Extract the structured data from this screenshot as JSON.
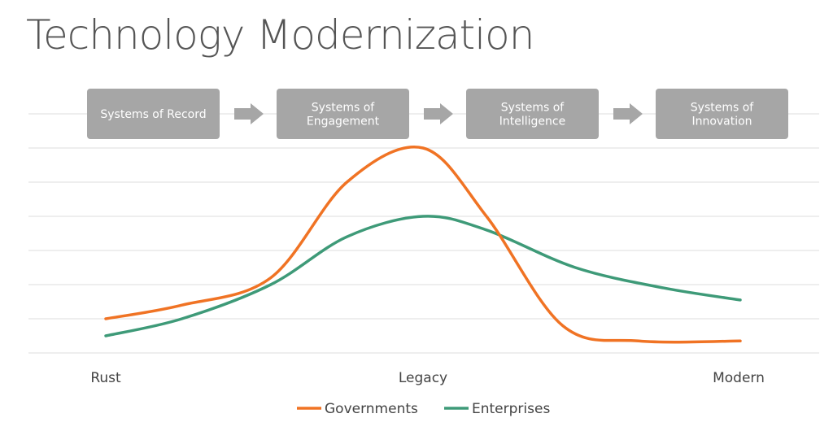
{
  "chart_data": {
    "type": "line",
    "title": "Technology Modernization",
    "stages": [
      {
        "lines": [
          "Systems of Record"
        ]
      },
      {
        "lines": [
          "Systems of",
          "Engagement"
        ]
      },
      {
        "lines": [
          "Systems of",
          "Intelligence"
        ]
      },
      {
        "lines": [
          "Systems of",
          "Innovation"
        ]
      }
    ],
    "x_labels": [
      "Rust",
      "Legacy",
      "Modern"
    ],
    "series": [
      {
        "name": "Governments",
        "color": "#f07324",
        "points": [
          [
            0.0,
            1.0
          ],
          [
            0.12,
            1.4
          ],
          [
            0.26,
            2.2
          ],
          [
            0.38,
            5.0
          ],
          [
            0.5,
            6.0
          ],
          [
            0.6,
            4.0
          ],
          [
            0.72,
            0.8
          ],
          [
            0.84,
            0.35
          ],
          [
            1.0,
            0.35
          ]
        ]
      },
      {
        "name": "Enterprises",
        "color": "#3e9a78",
        "points": [
          [
            0.0,
            0.5
          ],
          [
            0.12,
            1.0
          ],
          [
            0.26,
            2.0
          ],
          [
            0.38,
            3.4
          ],
          [
            0.5,
            4.0
          ],
          [
            0.6,
            3.6
          ],
          [
            0.74,
            2.5
          ],
          [
            0.88,
            1.9
          ],
          [
            1.0,
            1.55
          ]
        ]
      }
    ],
    "ylim": [
      0,
      6
    ],
    "grid": true,
    "legend_position": "bottom-center"
  }
}
